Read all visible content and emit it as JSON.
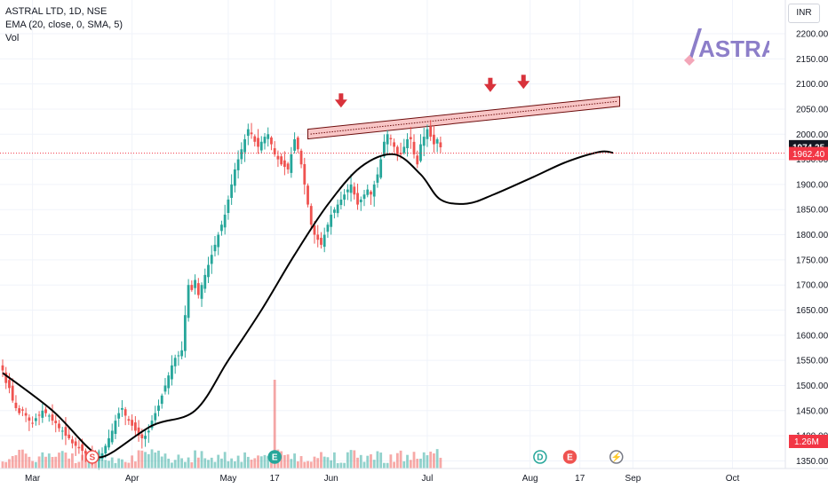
{
  "legend": {
    "symbol": "ASTRAL LTD, 1D, NSE",
    "indicator": "EMA (20, close, 0, SMA, 5)",
    "volume": "Vol"
  },
  "currency": "INR",
  "logo_text": "ASTRAL",
  "colors": {
    "up": "#26a69a",
    "down": "#ef5350",
    "ema": "#000000",
    "trendline_fill": "#f8c6c6",
    "trendline_stroke": "#6d0d0d",
    "arrow": "#d8323b",
    "last_price": "#131722",
    "ref_price": "#f23645"
  },
  "chart_data": {
    "type": "candlestick",
    "y_axis": {
      "ticks": [
        1350,
        1400,
        1450,
        1500,
        1550,
        1600,
        1650,
        1700,
        1750,
        1800,
        1850,
        1900,
        1950,
        2000,
        2050,
        2100,
        2150,
        2200
      ],
      "side": "right"
    },
    "x_axis": {
      "ticks": [
        {
          "label": "Mar",
          "day": 9
        },
        {
          "label": "Apr",
          "day": 39
        },
        {
          "label": "May",
          "day": 68
        },
        {
          "label": "17",
          "day": 82
        },
        {
          "label": "Jun",
          "day": 99
        },
        {
          "label": "Jul",
          "day": 128
        },
        {
          "label": "Aug",
          "day": 159
        },
        {
          "label": "17",
          "day": 174
        },
        {
          "label": "Sep",
          "day": 190
        },
        {
          "label": "Oct",
          "day": 220
        }
      ]
    },
    "last_price": "1974.25",
    "ref_price": "1962.40",
    "volume_last": "1.26M",
    "candles_close": [
      1530,
      1505,
      1495,
      1470,
      1455,
      1445,
      1450,
      1440,
      1430,
      1425,
      1435,
      1440,
      1450,
      1445,
      1440,
      1430,
      1425,
      1415,
      1410,
      1400,
      1395,
      1385,
      1380,
      1375,
      1370,
      1365,
      1362,
      1360,
      1358,
      1360,
      1365,
      1380,
      1395,
      1410,
      1430,
      1445,
      1455,
      1440,
      1430,
      1420,
      1410,
      1400,
      1395,
      1400,
      1410,
      1430,
      1445,
      1460,
      1480,
      1500,
      1520,
      1540,
      1555,
      1560,
      1570,
      1640,
      1700,
      1690,
      1710,
      1680,
      1700,
      1720,
      1740,
      1760,
      1780,
      1800,
      1820,
      1840,
      1870,
      1900,
      1930,
      1950,
      1970,
      1990,
      2010,
      2000,
      1985,
      1975,
      1985,
      1995,
      2000,
      1980,
      1960,
      1950,
      1940,
      1935,
      1930,
      1960,
      1990,
      1970,
      1940,
      1900,
      1860,
      1820,
      1800,
      1790,
      1780,
      1800,
      1820,
      1840,
      1850,
      1860,
      1870,
      1880,
      1890,
      1900,
      1880,
      1860,
      1870,
      1880,
      1890,
      1880,
      1900,
      1920,
      1950,
      1985,
      2000,
      1990,
      1975,
      1960,
      1960,
      1975,
      1990,
      1990,
      1960,
      1940,
      1980,
      1995,
      2010,
      1995,
      1980,
      1990,
      1974
    ],
    "ema_anchor_points": [
      [
        0,
        1525
      ],
      [
        15,
        1450
      ],
      [
        26,
        1375
      ],
      [
        31,
        1360
      ],
      [
        45,
        1420
      ],
      [
        58,
        1450
      ],
      [
        68,
        1550
      ],
      [
        78,
        1650
      ],
      [
        88,
        1760
      ],
      [
        98,
        1860
      ],
      [
        108,
        1935
      ],
      [
        118,
        1960
      ],
      [
        126,
        1920
      ],
      [
        132,
        1870
      ],
      [
        140,
        1862
      ],
      [
        148,
        1880
      ],
      [
        160,
        1915
      ],
      [
        170,
        1945
      ],
      [
        180,
        1965
      ],
      [
        184,
        1963
      ]
    ],
    "trendline": {
      "from": {
        "day": 92,
        "price": 2010
      },
      "to": {
        "day": 186,
        "price": 2075
      }
    },
    "resistance_arrows": [
      {
        "day": 102,
        "price": 2053
      },
      {
        "day": 147,
        "price": 2084
      },
      {
        "day": 157,
        "price": 2090
      }
    ],
    "event_badges": [
      {
        "label": "S",
        "day": 27,
        "color": "#ef5350",
        "outline": true
      },
      {
        "label": "E",
        "day": 82,
        "color": "#26a69a",
        "outline": false
      },
      {
        "label": "D",
        "day": 162,
        "color": "#26a69a",
        "outline": true
      },
      {
        "label": "E",
        "day": 171,
        "color": "#ef5350",
        "outline": false
      },
      {
        "label": "⚡",
        "day": 185,
        "color": "#787b86",
        "outline": true
      }
    ]
  }
}
